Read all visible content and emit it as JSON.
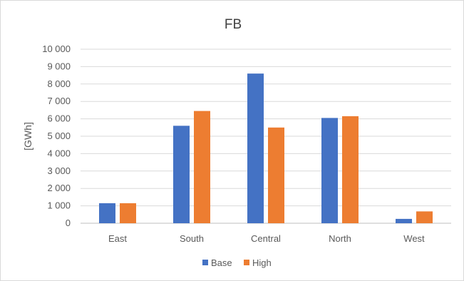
{
  "chart_data": {
    "type": "bar",
    "title": "FB",
    "xlabel": "",
    "ylabel": "[GWh]",
    "categories": [
      "East",
      "South",
      "Central",
      "North",
      "West"
    ],
    "series": [
      {
        "name": "Base",
        "color": "#4472c4",
        "values": [
          1150,
          5600,
          8600,
          6050,
          250
        ]
      },
      {
        "name": "High",
        "color": "#ed7d31",
        "values": [
          1150,
          6450,
          5500,
          6150,
          680
        ]
      }
    ],
    "ylim": [
      0,
      10000
    ],
    "yticks": [
      0,
      1000,
      2000,
      3000,
      4000,
      5000,
      6000,
      7000,
      8000,
      9000,
      10000
    ],
    "ytick_labels": [
      "0",
      "1 000",
      "2 000",
      "3 000",
      "4 000",
      "5 000",
      "6 000",
      "7 000",
      "8 000",
      "9 000",
      "10 000"
    ],
    "grid": true,
    "legend_position": "bottom"
  }
}
